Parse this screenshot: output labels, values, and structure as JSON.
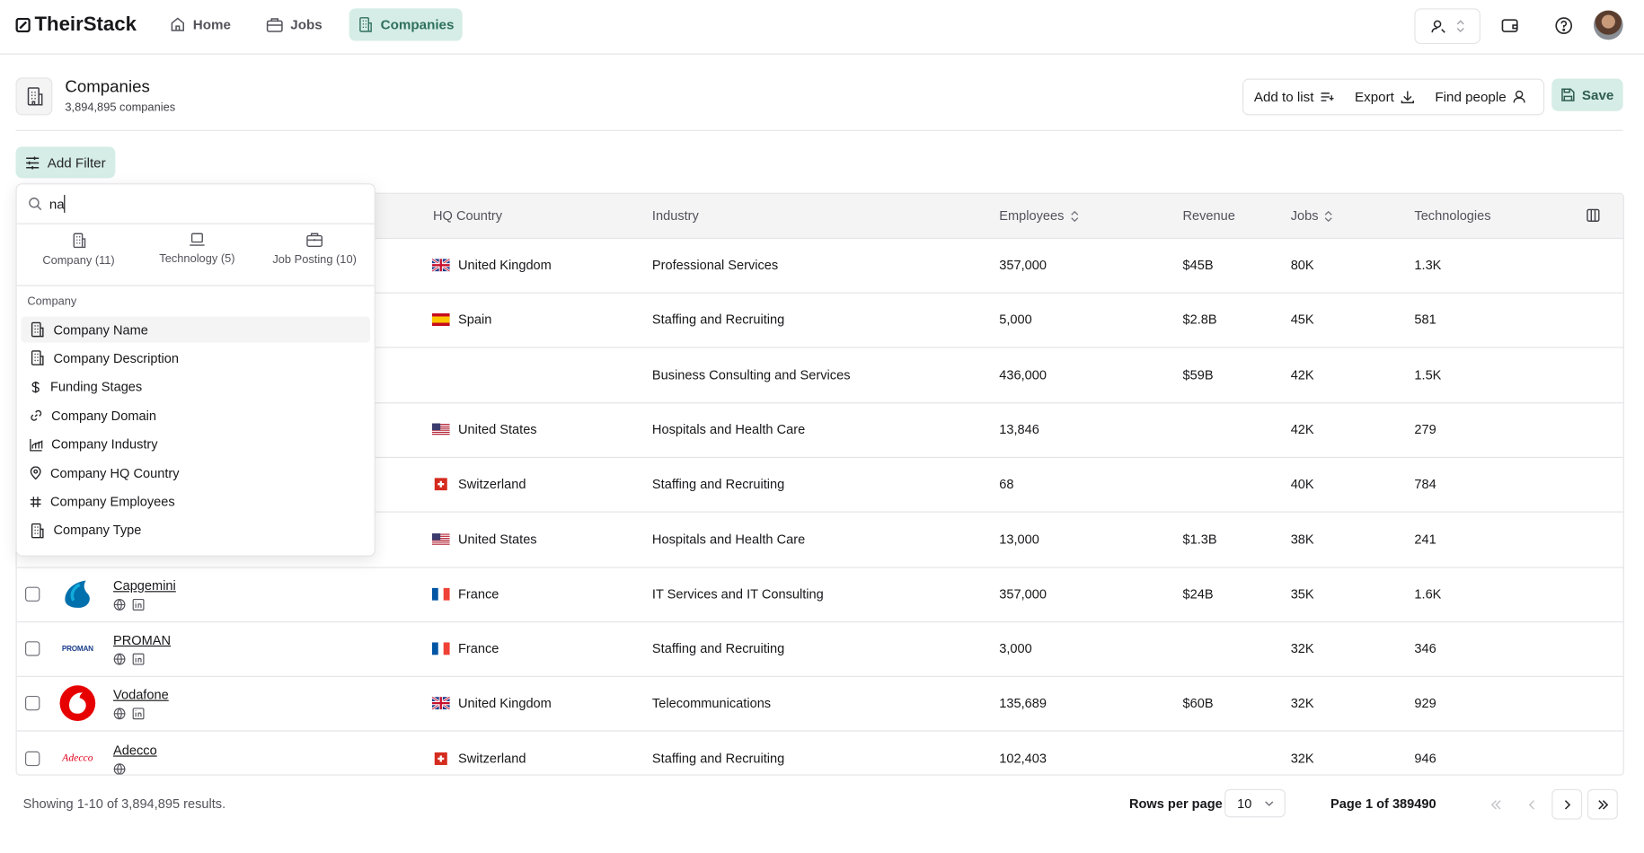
{
  "nav": {
    "brand": "TheirStack",
    "items": [
      "Home",
      "Jobs",
      "Companies"
    ],
    "active": 2
  },
  "header": {
    "title": "Companies",
    "subtitle": "3,894,895 companies",
    "actions": [
      "Add to list",
      "Export",
      "Find people"
    ],
    "save": "Save"
  },
  "filter": {
    "button": "Add Filter",
    "search": "na",
    "tabs": [
      "Company (11)",
      "Technology (5)",
      "Job Posting (10)"
    ],
    "section": "Company",
    "items": [
      "Company Name",
      "Company Description",
      "Funding Stages",
      "Company Domain",
      "Company Industry",
      "Company HQ Country",
      "Company Employees",
      "Company Type"
    ],
    "highlighted": 0
  },
  "table": {
    "columns": [
      "HQ Country",
      "Industry",
      "Employees",
      "Revenue",
      "Jobs",
      "Technologies"
    ],
    "rows": [
      {
        "country": "United Kingdom",
        "industry": "Professional Services",
        "employees": "357,000",
        "revenue": "$45B",
        "jobs": "80K",
        "technologies": "1.3K"
      },
      {
        "country": "Spain",
        "industry": "Staffing and Recruiting",
        "employees": "5,000",
        "revenue": "$2.8B",
        "jobs": "45K",
        "technologies": "581"
      },
      {
        "industry": "Business Consulting and Services",
        "employees": "436,000",
        "revenue": "$59B",
        "jobs": "42K",
        "technologies": "1.5K"
      },
      {
        "country": "United States",
        "industry": "Hospitals and Health Care",
        "employees": "13,846",
        "jobs": "42K",
        "technologies": "279"
      },
      {
        "country": "Switzerland",
        "industry": "Staffing and Recruiting",
        "employees": "68",
        "jobs": "40K",
        "technologies": "784"
      },
      {
        "country": "United States",
        "industry": "Hospitals and Health Care",
        "employees": "13,000",
        "revenue": "$1.3B",
        "jobs": "38K",
        "technologies": "241"
      },
      {
        "name": "Capgemini",
        "country": "France",
        "industry": "IT Services and IT Consulting",
        "employees": "357,000",
        "revenue": "$24B",
        "jobs": "35K",
        "technologies": "1.6K"
      },
      {
        "name": "PROMAN",
        "country": "France",
        "industry": "Staffing and Recruiting",
        "employees": "3,000",
        "jobs": "32K",
        "technologies": "346"
      },
      {
        "name": "Vodafone",
        "country": "United Kingdom",
        "industry": "Telecommunications",
        "employees": "135,689",
        "revenue": "$60B",
        "jobs": "32K",
        "technologies": "929"
      },
      {
        "name": "Adecco",
        "country": "Switzerland",
        "industry": "Staffing and Recruiting",
        "employees": "102,403",
        "jobs": "32K",
        "technologies": "946"
      }
    ]
  },
  "footer": {
    "summary": "Showing 1-10 of 3,894,895 results.",
    "rows_per_page_label": "Rows per page",
    "rows_per_page": "10",
    "page": "Page 1 of 389490"
  }
}
